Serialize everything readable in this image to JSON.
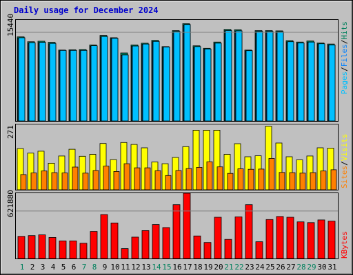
{
  "chart_data": {
    "type": "bar",
    "title": "Daily usage for December 2024",
    "colors": {
      "background": "#c0c0c0",
      "title": "#0000cc",
      "hits": "#00805c",
      "files": "#0080ff",
      "pages": "#00c0ff",
      "visits": "#ffff00",
      "sites": "#ff8000",
      "kbytes": "#ff0000",
      "weekday_label": "#000000",
      "weekend_label": "#00805c"
    },
    "categories": [
      "1",
      "2",
      "3",
      "4",
      "5",
      "6",
      "7",
      "8",
      "9",
      "10",
      "11",
      "12",
      "13",
      "14",
      "15",
      "16",
      "17",
      "18",
      "19",
      "20",
      "21",
      "22",
      "23",
      "24",
      "25",
      "26",
      "27",
      "28",
      "29",
      "30",
      "31"
    ],
    "weekend_days": [
      "1",
      "7",
      "8",
      "14",
      "15",
      "21",
      "22",
      "28",
      "29"
    ],
    "panels": [
      {
        "id": "top",
        "ytick_label": "15440",
        "ytick_value": 15440,
        "ymax": 17600,
        "legend": [
          "Pages",
          "Files",
          "Hits"
        ],
        "series": [
          {
            "name": "Hits",
            "values": [
              14650,
              13800,
              13900,
              13700,
              12350,
              12400,
              12450,
              13250,
              14900,
              14500,
              11850,
              13250,
              13550,
              14050,
              12950,
              15750,
              16950,
              13100,
              12650,
              13750,
              15950,
              15900,
              12350,
              15750,
              15750,
              15700,
              14000,
              13750,
              13950,
              13600,
              13400
            ]
          },
          {
            "name": "Files",
            "values": [
              14450,
              13500,
              13650,
              13400,
              12200,
              12250,
              12250,
              13000,
              14650,
              14350,
              11450,
              13000,
              13350,
              13800,
              12800,
              15550,
              16700,
              12850,
              12500,
              13500,
              15700,
              15650,
              12200,
              15550,
              15550,
              15500,
              13750,
              13550,
              13700,
              13400,
              13200
            ]
          },
          {
            "name": "Pages",
            "values": [
              14500,
              13650,
              13700,
              13500,
              12300,
              12300,
              12300,
              13100,
              14700,
              14400,
              11500,
              13050,
              13400,
              13850,
              12900,
              15600,
              16800,
              12950,
              12550,
              13550,
              15750,
              15700,
              12250,
              15600,
              15600,
              15550,
              13800,
              13600,
              13750,
              13450,
              13250
            ]
          }
        ]
      },
      {
        "id": "middle",
        "ytick_label": "271",
        "ytick_value": 271,
        "ymax": 271,
        "legend": [
          "Sites",
          "Visits"
        ],
        "series": [
          {
            "name": "Visits",
            "values": [
              171,
              152,
              160,
              110,
              140,
              168,
              139,
              147,
              192,
              125,
              196,
              188,
              174,
              115,
              108,
              134,
              179,
              247,
              247,
              247,
              147,
              191,
              137,
              141,
              264,
              194,
              137,
              124,
              140,
              174,
              173
            ]
          },
          {
            "name": "Sites",
            "values": [
              63,
              70,
              78,
              71,
              70,
              94,
              69,
              80,
              98,
              76,
              108,
              91,
              91,
              79,
              59,
              80,
              88,
              93,
              116,
              95,
              68,
              87,
              85,
              86,
              130,
              72,
              71,
              69,
              71,
              78,
              83
            ]
          }
        ]
      },
      {
        "id": "bottom",
        "ytick_label": "621880",
        "ytick_value": 621880,
        "ymax": 855000,
        "legend": [
          "KBytes"
        ],
        "series": [
          {
            "name": "KBytes",
            "values": [
              290000,
              300000,
              310000,
              275000,
              230000,
              230000,
              200000,
              355000,
              575000,
              465000,
              130000,
              280000,
              365000,
              445000,
              405000,
              705000,
              855000,
              295000,
              210000,
              540000,
              250000,
              545000,
              705000,
              220000,
              510000,
              550000,
              540000,
              480000,
              470000,
              505000,
              490000
            ]
          }
        ]
      }
    ]
  }
}
